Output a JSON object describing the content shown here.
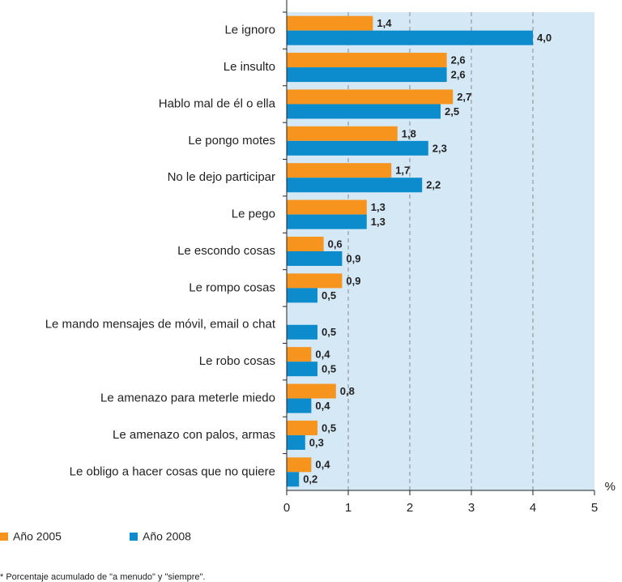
{
  "chart_data": {
    "type": "bar",
    "orientation": "horizontal",
    "categories": [
      "Le ignoro",
      "Le insulto",
      "Hablo mal de él o ella",
      "Le pongo motes",
      "No le dejo participar",
      "Le pego",
      "Le escondo cosas",
      "Le rompo cosas",
      "Le mando mensajes de móvil, email o chat",
      "Le robo cosas",
      "Le amenazo para meterle miedo",
      "Le amenazo con palos, armas",
      "Le obligo a hacer cosas que no quiere"
    ],
    "series": [
      {
        "name": "Año 2005",
        "color": "#f7941d",
        "values": [
          1.4,
          2.6,
          2.7,
          1.8,
          1.7,
          1.3,
          0.6,
          0.9,
          null,
          0.4,
          0.8,
          0.5,
          0.4
        ],
        "value_labels": [
          "1,4",
          "2,6",
          "2,7",
          "1,8",
          "1,7",
          "1,3",
          "0,6",
          "0,9",
          null,
          "0,4",
          "0,8",
          "0,5",
          "0,4"
        ]
      },
      {
        "name": "Año 2008",
        "color": "#0d8ccd",
        "values": [
          4.0,
          2.6,
          2.5,
          2.3,
          2.2,
          1.3,
          0.9,
          0.5,
          0.5,
          0.5,
          0.4,
          0.3,
          0.2
        ],
        "value_labels": [
          "4,0",
          "2,6",
          "2,5",
          "2,3",
          "2,2",
          "1,3",
          "0,9",
          "0,5",
          "0,5",
          "0,5",
          "0,4",
          "0,3",
          "0,2"
        ]
      }
    ],
    "xlim": [
      0,
      5
    ],
    "xticks": [
      0,
      1,
      2,
      3,
      4,
      5
    ],
    "xlabel": "%",
    "grid": true,
    "note": "* Porcentaje acumulado de \"a menudo\" y \"siempre\"."
  }
}
